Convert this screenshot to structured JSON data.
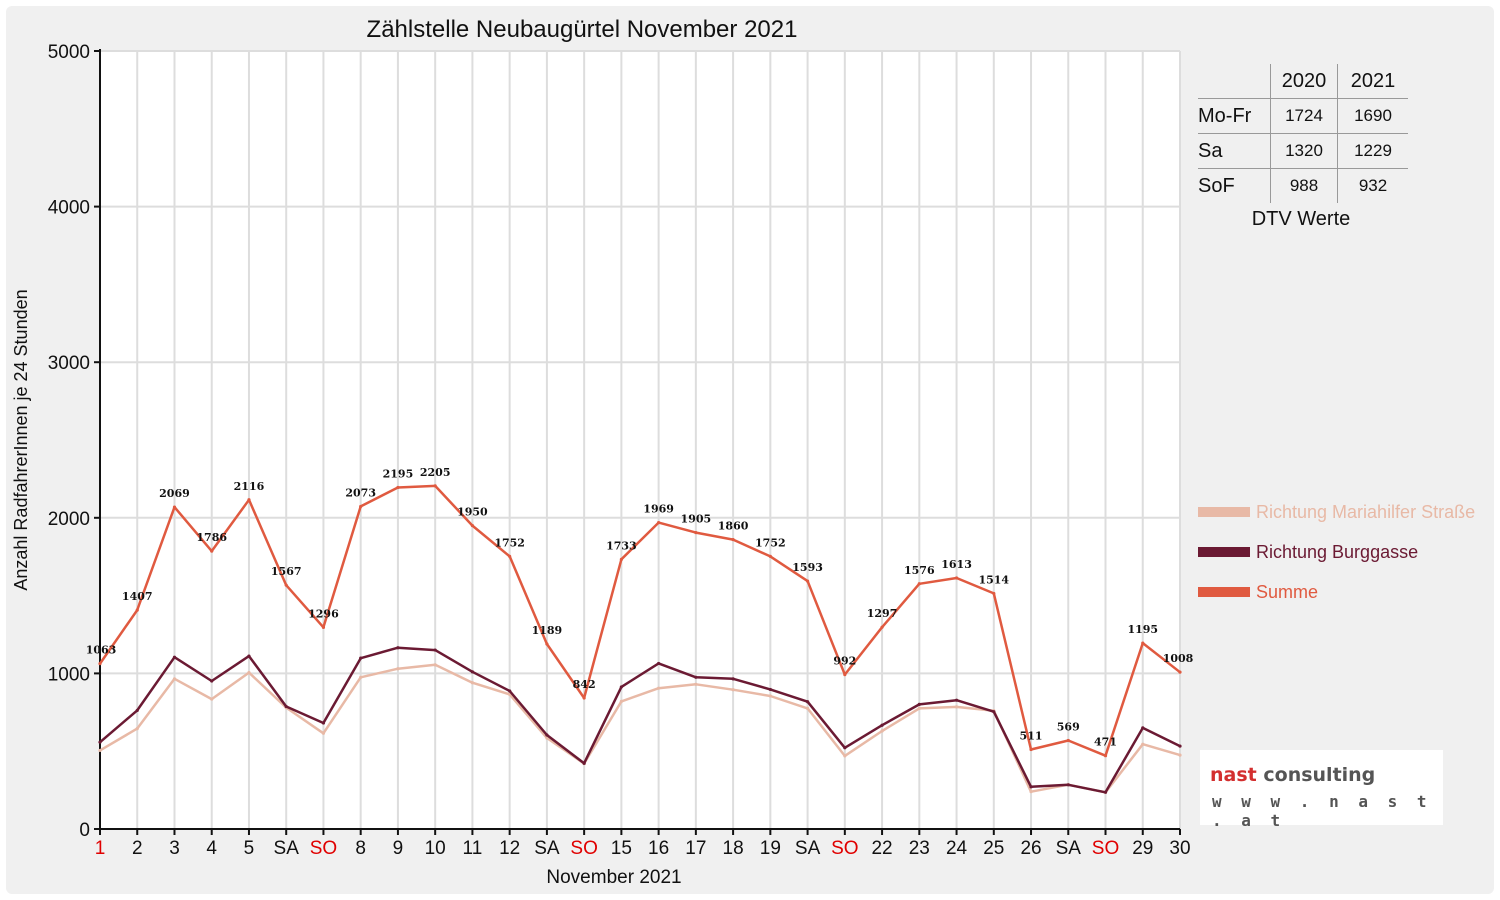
{
  "chart_data": {
    "type": "line",
    "title": "Zählstelle Neubaugürtel November 2021",
    "xlabel": "November 2021",
    "ylabel": "Anzahl RadfahrerInnen je 24 Stunden",
    "ylim": [
      0,
      5000
    ],
    "yticks": [
      0,
      1000,
      2000,
      3000,
      4000,
      5000
    ],
    "grid": true,
    "legend_position": "right",
    "categories": [
      "1",
      "2",
      "3",
      "4",
      "5",
      "SA",
      "SO",
      "8",
      "9",
      "10",
      "11",
      "12",
      "SA",
      "SO",
      "15",
      "16",
      "17",
      "18",
      "19",
      "SA",
      "SO",
      "22",
      "23",
      "24",
      "25",
      "26",
      "SA",
      "SO",
      "29",
      "30"
    ],
    "red_labels": [
      0,
      6,
      13,
      20,
      27
    ],
    "series": [
      {
        "name": "Richtung Mariahilfer Straße",
        "color": "#e8b9a6",
        "values": [
          505,
          645,
          965,
          835,
          1005,
          780,
          615,
          975,
          1030,
          1055,
          940,
          865,
          585,
          420,
          820,
          905,
          930,
          895,
          855,
          775,
          470,
          630,
          775,
          785,
          760,
          240,
          285,
          235,
          545,
          475
        ]
      },
      {
        "name": "Richtung Burggasse",
        "color": "#6b1a33",
        "values": [
          558,
          762,
          1104,
          951,
          1111,
          787,
          681,
          1098,
          1165,
          1150,
          1010,
          887,
          604,
          422,
          913,
          1064,
          975,
          965,
          897,
          818,
          522,
          667,
          801,
          828,
          754,
          271,
          284,
          236,
          650,
          533
        ]
      },
      {
        "name": "Summe",
        "color": "#e05a40",
        "values": [
          1063,
          1407,
          2069,
          1786,
          2116,
          1567,
          1296,
          2073,
          2195,
          2205,
          1950,
          1752,
          1189,
          842,
          1733,
          1969,
          1905,
          1860,
          1752,
          1593,
          992,
          1297,
          1576,
          1613,
          1514,
          511,
          569,
          471,
          1195,
          1008
        ],
        "data_labels": true
      }
    ]
  },
  "dtv_table": {
    "caption": "DTV Werte",
    "columns": [
      "2020",
      "2021"
    ],
    "rows": [
      {
        "label": "Mo-Fr",
        "values": [
          "1724",
          "1690"
        ]
      },
      {
        "label": "Sa",
        "values": [
          "1320",
          "1229"
        ]
      },
      {
        "label": "SoF",
        "values": [
          "988",
          "932"
        ]
      }
    ]
  },
  "logo": {
    "brand_part1": "nast",
    "brand_part2": "consulting",
    "url": "w w w . n a s t . a t"
  }
}
